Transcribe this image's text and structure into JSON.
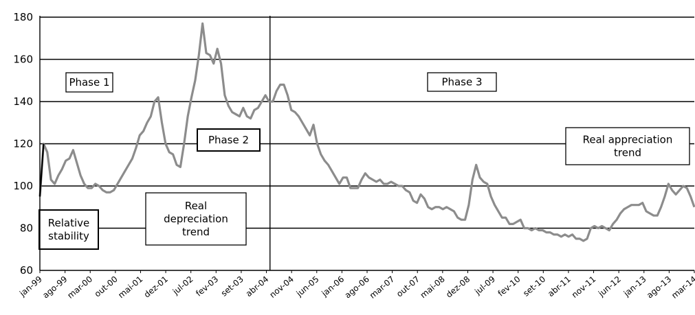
{
  "chart_data": {
    "type": "line",
    "title": "",
    "xlabel": "",
    "ylabel": "",
    "ylim": [
      60,
      180
    ],
    "yticks": [
      60,
      80,
      100,
      120,
      140,
      160,
      180
    ],
    "grid": "horizontal",
    "line_color": "#8c8c8c",
    "x_tick_labels": [
      "jan-99",
      "ago-99",
      "mar-00",
      "out-00",
      "mai-01",
      "dez-01",
      "jul-02",
      "fev-03",
      "set-03",
      "abr-04",
      "nov-04",
      "jun-05",
      "jan-06",
      "ago-06",
      "mar-07",
      "out-07",
      "mai-08",
      "dez-08",
      "jul-09",
      "fev-10",
      "set-10",
      "abr-11",
      "nov-11",
      "jun-12",
      "jan-13",
      "ago-13",
      "mar-14"
    ],
    "start_month": "jan-99",
    "end_month": "mar-14",
    "phase_divider": "mai-04",
    "series": [
      {
        "values": [
          95,
          120,
          116,
          103,
          101,
          105,
          108,
          112,
          113,
          117,
          111,
          105,
          101,
          99,
          99,
          101,
          100,
          98,
          97,
          97,
          98,
          101,
          104,
          107,
          110,
          113,
          118,
          124,
          126,
          130,
          133,
          140,
          142,
          130,
          120,
          116,
          115,
          110,
          109,
          120,
          133,
          142,
          150,
          162,
          177,
          163,
          162,
          158,
          165,
          158,
          143,
          138,
          135,
          134,
          133,
          137,
          133,
          132,
          136,
          137,
          140,
          143,
          140,
          140,
          145,
          148,
          148,
          143,
          136,
          135,
          133,
          130,
          127,
          124,
          129,
          120,
          115,
          112,
          110,
          107,
          104,
          101,
          104,
          104,
          99,
          99,
          99,
          103,
          106,
          104,
          103,
          102,
          103,
          101,
          101,
          102,
          101,
          100,
          100,
          98,
          97,
          93,
          92,
          96,
          94,
          90,
          89,
          90,
          90,
          89,
          90,
          89,
          88,
          85,
          84,
          84,
          91,
          103,
          110,
          104,
          102,
          101,
          95,
          91,
          88,
          85,
          85,
          82,
          82,
          83,
          84,
          80,
          80,
          79,
          80,
          79,
          79,
          78,
          78,
          77,
          77,
          76,
          77,
          76,
          77,
          75,
          75,
          74,
          75,
          80,
          81,
          80,
          81,
          80,
          79,
          82,
          84,
          87,
          89,
          90,
          91,
          91,
          91,
          92,
          88,
          87,
          86,
          86,
          90,
          95,
          101,
          98,
          96,
          98,
          100,
          99,
          95,
          90
        ]
      }
    ],
    "annotations": [
      {
        "id": "phase-1",
        "lines": [
          "Phase 1"
        ]
      },
      {
        "id": "phase-2",
        "lines": [
          "Phase 2"
        ]
      },
      {
        "id": "phase-3",
        "lines": [
          "Phase 3"
        ]
      },
      {
        "id": "relative-stability",
        "lines": [
          "Relative",
          "stability"
        ]
      },
      {
        "id": "real-depreciation",
        "lines": [
          "Real",
          "depreciation",
          "trend"
        ]
      },
      {
        "id": "real-appreciation",
        "lines": [
          "Real appreciation",
          "trend"
        ]
      }
    ]
  }
}
